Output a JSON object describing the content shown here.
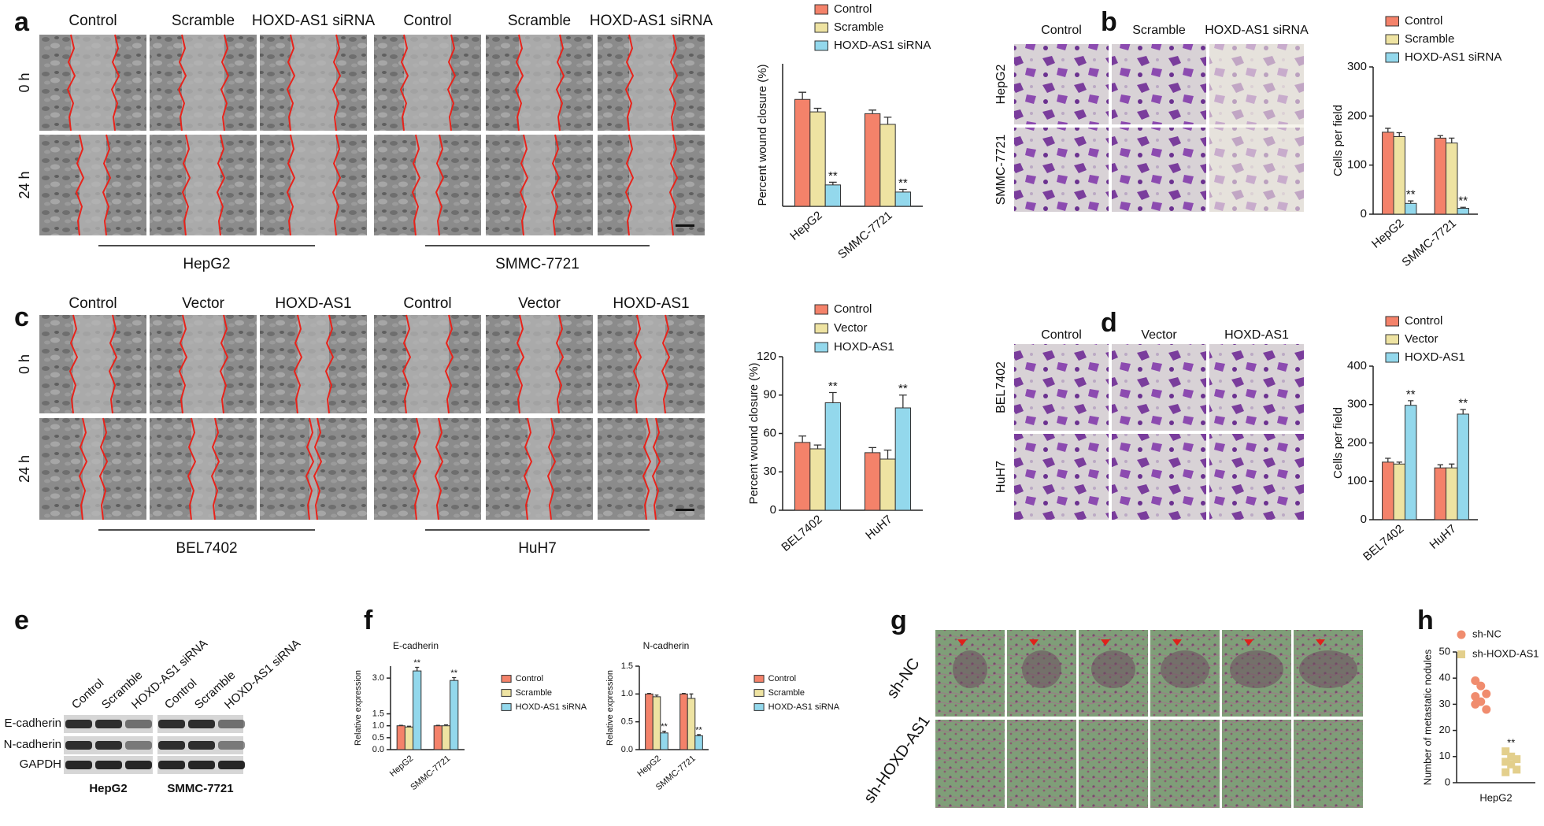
{
  "figure": {
    "panel_letters": [
      "a",
      "b",
      "c",
      "d",
      "e",
      "f",
      "g",
      "h"
    ],
    "a": {
      "columns": [
        "Control",
        "Scramble",
        "HOXD-AS1 siRNA",
        "Control",
        "Scramble",
        "HOXD-AS1 siRNA"
      ],
      "rows": [
        "0 h",
        "24 h"
      ],
      "groups": [
        "HepG2",
        "SMMC-7721"
      ]
    },
    "b": {
      "columns": [
        "Control",
        "Scramble",
        "HOXD-AS1 siRNA"
      ],
      "rows": [
        "HepG2",
        "SMMC-7721"
      ]
    },
    "c": {
      "columns": [
        "Control",
        "Vector",
        "HOXD-AS1",
        "Control",
        "Vector",
        "HOXD-AS1"
      ],
      "rows": [
        "0 h",
        "24 h"
      ],
      "groups": [
        "BEL7402",
        "HuH7"
      ]
    },
    "d": {
      "columns": [
        "Control",
        "Vector",
        "HOXD-AS1"
      ],
      "rows": [
        "BEL7402",
        "HuH7"
      ]
    },
    "e": {
      "columns": [
        "Control",
        "Scramble",
        "HOXD-AS1 siRNA",
        "Control",
        "Scramble",
        "HOXD-AS1 siRNA"
      ],
      "rows": [
        "E-cadherin",
        "N-cadherin",
        "GAPDH"
      ],
      "groups": [
        "HepG2",
        "SMMC-7721"
      ]
    },
    "g": {
      "rows": [
        "sh-NC",
        "sh-HOXD-AS1"
      ]
    }
  },
  "chart_data": [
    {
      "type": "bar",
      "y_label": "Percent wound closure (%)",
      "categories": [
        "HepG2",
        "SMMC-7721"
      ],
      "series": [
        {
          "name": "Control",
          "color": "#f4826a",
          "values": [
            60,
            52
          ],
          "errors": [
            4,
            2
          ]
        },
        {
          "name": "Scramble",
          "color": "#eee3a2",
          "values": [
            53,
            46
          ],
          "errors": [
            2,
            4
          ]
        },
        {
          "name": "HOXD-AS1 siRNA",
          "color": "#93d8ec",
          "values": [
            12,
            8
          ],
          "errors": [
            1.5,
            1.5
          ]
        }
      ],
      "ylim": [
        0,
        80
      ],
      "annotations": [
        {
          "text": "**",
          "category": "HepG2",
          "series": "HOXD-AS1 siRNA"
        },
        {
          "text": "**",
          "category": "SMMC-7721",
          "series": "HOXD-AS1 siRNA"
        }
      ]
    },
    {
      "type": "bar",
      "y_label": "Cells per field",
      "categories": [
        "HepG2",
        "SMMC-7721"
      ],
      "series": [
        {
          "name": "Control",
          "color": "#f4826a",
          "values": [
            167,
            155
          ],
          "errors": [
            8,
            5
          ]
        },
        {
          "name": "Scramble",
          "color": "#eee3a2",
          "values": [
            158,
            145
          ],
          "errors": [
            8,
            10
          ]
        },
        {
          "name": "HOXD-AS1 siRNA",
          "color": "#93d8ec",
          "values": [
            22,
            12
          ],
          "errors": [
            5,
            2
          ]
        }
      ],
      "ylim": [
        0,
        300
      ],
      "yticks": [
        0,
        100,
        200,
        300
      ],
      "annotations": [
        {
          "text": "**",
          "category": "HepG2",
          "series": "HOXD-AS1 siRNA"
        },
        {
          "text": "**",
          "category": "SMMC-7721",
          "series": "HOXD-AS1 siRNA"
        }
      ]
    },
    {
      "type": "bar",
      "y_label": "Percent wound closure (%)",
      "categories": [
        "BEL7402",
        "HuH7"
      ],
      "series": [
        {
          "name": "Control",
          "color": "#f4826a",
          "values": [
            53,
            45
          ],
          "errors": [
            5,
            4
          ]
        },
        {
          "name": "Vector",
          "color": "#eee3a2",
          "values": [
            48,
            40
          ],
          "errors": [
            3,
            7
          ]
        },
        {
          "name": "HOXD-AS1",
          "color": "#93d8ec",
          "values": [
            84,
            80
          ],
          "errors": [
            8,
            10
          ]
        }
      ],
      "ylim": [
        0,
        120
      ],
      "yticks": [
        0,
        30,
        60,
        90,
        120
      ],
      "annotations": [
        {
          "text": "**",
          "category": "BEL7402",
          "series": "HOXD-AS1"
        },
        {
          "text": "**",
          "category": "HuH7",
          "series": "HOXD-AS1"
        }
      ]
    },
    {
      "type": "bar",
      "y_label": "Cells per field",
      "categories": [
        "BEL7402",
        "HuH7"
      ],
      "series": [
        {
          "name": "Control",
          "color": "#f4826a",
          "values": [
            150,
            135
          ],
          "errors": [
            10,
            8
          ]
        },
        {
          "name": "Vector",
          "color": "#eee3a2",
          "values": [
            145,
            135
          ],
          "errors": [
            5,
            10
          ]
        },
        {
          "name": "HOXD-AS1",
          "color": "#93d8ec",
          "values": [
            298,
            275
          ],
          "errors": [
            12,
            12
          ]
        }
      ],
      "ylim": [
        0,
        400
      ],
      "yticks": [
        0,
        100,
        200,
        300,
        400
      ],
      "annotations": [
        {
          "text": "**",
          "category": "BEL7402",
          "series": "HOXD-AS1"
        },
        {
          "text": "**",
          "category": "HuH7",
          "series": "HOXD-AS1"
        }
      ]
    },
    {
      "type": "bar",
      "title": "E-cadherin",
      "y_label": "Relative expression",
      "categories": [
        "HepG2",
        "SMMC-7721"
      ],
      "series": [
        {
          "name": "Control",
          "color": "#f4826a",
          "values": [
            1.0,
            1.0
          ],
          "errors": [
            0.02,
            0.02
          ]
        },
        {
          "name": "Scramble",
          "color": "#eee3a2",
          "values": [
            0.95,
            1.0
          ],
          "errors": [
            0.03,
            0.04
          ]
        },
        {
          "name": "HOXD-AS1 siRNA",
          "color": "#93d8ec",
          "values": [
            3.3,
            2.9
          ],
          "errors": [
            0.15,
            0.12
          ]
        }
      ],
      "ylim": [
        0,
        3.5
      ],
      "yticks": [
        {
          "value": 0,
          "label": "0.0"
        },
        0.5,
        {
          "value": 1,
          "label": "1.0"
        },
        1.5,
        {
          "value": 3,
          "label": "3.0"
        }
      ],
      "annotations": [
        {
          "text": "**",
          "category": "HepG2",
          "series": "HOXD-AS1 siRNA"
        },
        {
          "text": "**",
          "category": "SMMC-7721",
          "series": "HOXD-AS1 siRNA"
        }
      ]
    },
    {
      "type": "bar",
      "title": "N-cadherin",
      "y_label": "Relative expression",
      "categories": [
        "HepG2",
        "SMMC-7721"
      ],
      "series": [
        {
          "name": "Control",
          "color": "#f4826a",
          "values": [
            1.0,
            1.0
          ],
          "errors": [
            0.01,
            0.01
          ]
        },
        {
          "name": "Scramble",
          "color": "#eee3a2",
          "values": [
            0.95,
            0.92
          ],
          "errors": [
            0.03,
            0.08
          ]
        },
        {
          "name": "HOXD-AS1 siRNA",
          "color": "#93d8ec",
          "values": [
            0.3,
            0.25
          ],
          "errors": [
            0.03,
            0.02
          ]
        }
      ],
      "ylim": [
        0,
        1.5
      ],
      "yticks": [
        {
          "value": 0,
          "label": "0.0"
        },
        0.5,
        {
          "value": 1,
          "label": "1.0"
        },
        1.5
      ],
      "annotations": [
        {
          "text": "**",
          "category": "HepG2",
          "series": "HOXD-AS1 siRNA"
        },
        {
          "text": "**",
          "category": "SMMC-7721",
          "series": "HOXD-AS1 siRNA"
        }
      ]
    },
    {
      "type": "scatter",
      "y_label": "Number of metastatic nodules",
      "categories": [
        "HepG2"
      ],
      "series": [
        {
          "name": "sh-NC",
          "color": "#f08c6e",
          "marker": "circle",
          "values": [
            39,
            37,
            34,
            33,
            31,
            28,
            30
          ]
        },
        {
          "name": "sh-HOXD-AS1",
          "color": "#e3cf8c",
          "marker": "square",
          "values": [
            12,
            10,
            9,
            8,
            7,
            5,
            4
          ]
        }
      ],
      "ylim": [
        0,
        50
      ],
      "yticks": [
        0,
        10,
        20,
        30,
        40,
        50
      ],
      "annotations": [
        {
          "text": "**",
          "series": "sh-HOXD-AS1"
        }
      ]
    }
  ]
}
